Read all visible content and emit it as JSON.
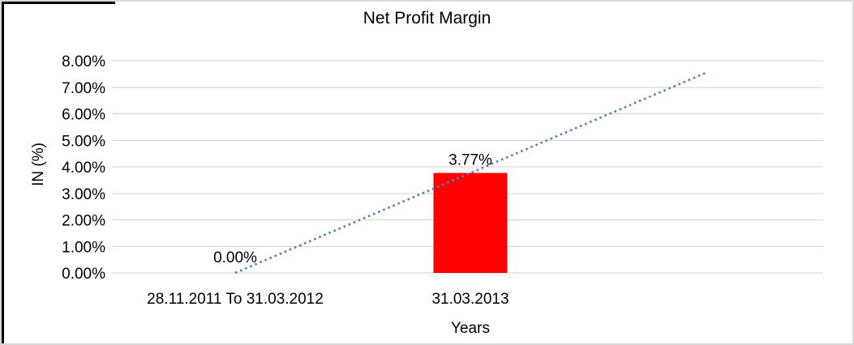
{
  "chart_data": {
    "type": "bar",
    "title": "Net Profit Margin",
    "xlabel": "Years",
    "ylabel": "IN (%)",
    "categories": [
      "28.11.2011 To 31.03.2012",
      "31.03.2013"
    ],
    "values": [
      0,
      3.77
    ],
    "data_labels": [
      "0.00%",
      "3.77%"
    ],
    "ytick_labels": [
      "0.00%",
      "1.00%",
      "2.00%",
      "3.00%",
      "4.00%",
      "5.00%",
      "6.00%",
      "7.00%",
      "8.00%"
    ],
    "ylim": [
      0,
      8
    ],
    "ytick_step": 1,
    "grid": true,
    "legend": "none",
    "background_color": "#ffffff",
    "gridline_color": "#d3d3d3",
    "bar_color": "#ff0000",
    "text_color": "#000000",
    "trendline": {
      "type": "linear",
      "style": "dotted",
      "color": "#4f81bd",
      "forward_periods": 1
    }
  }
}
